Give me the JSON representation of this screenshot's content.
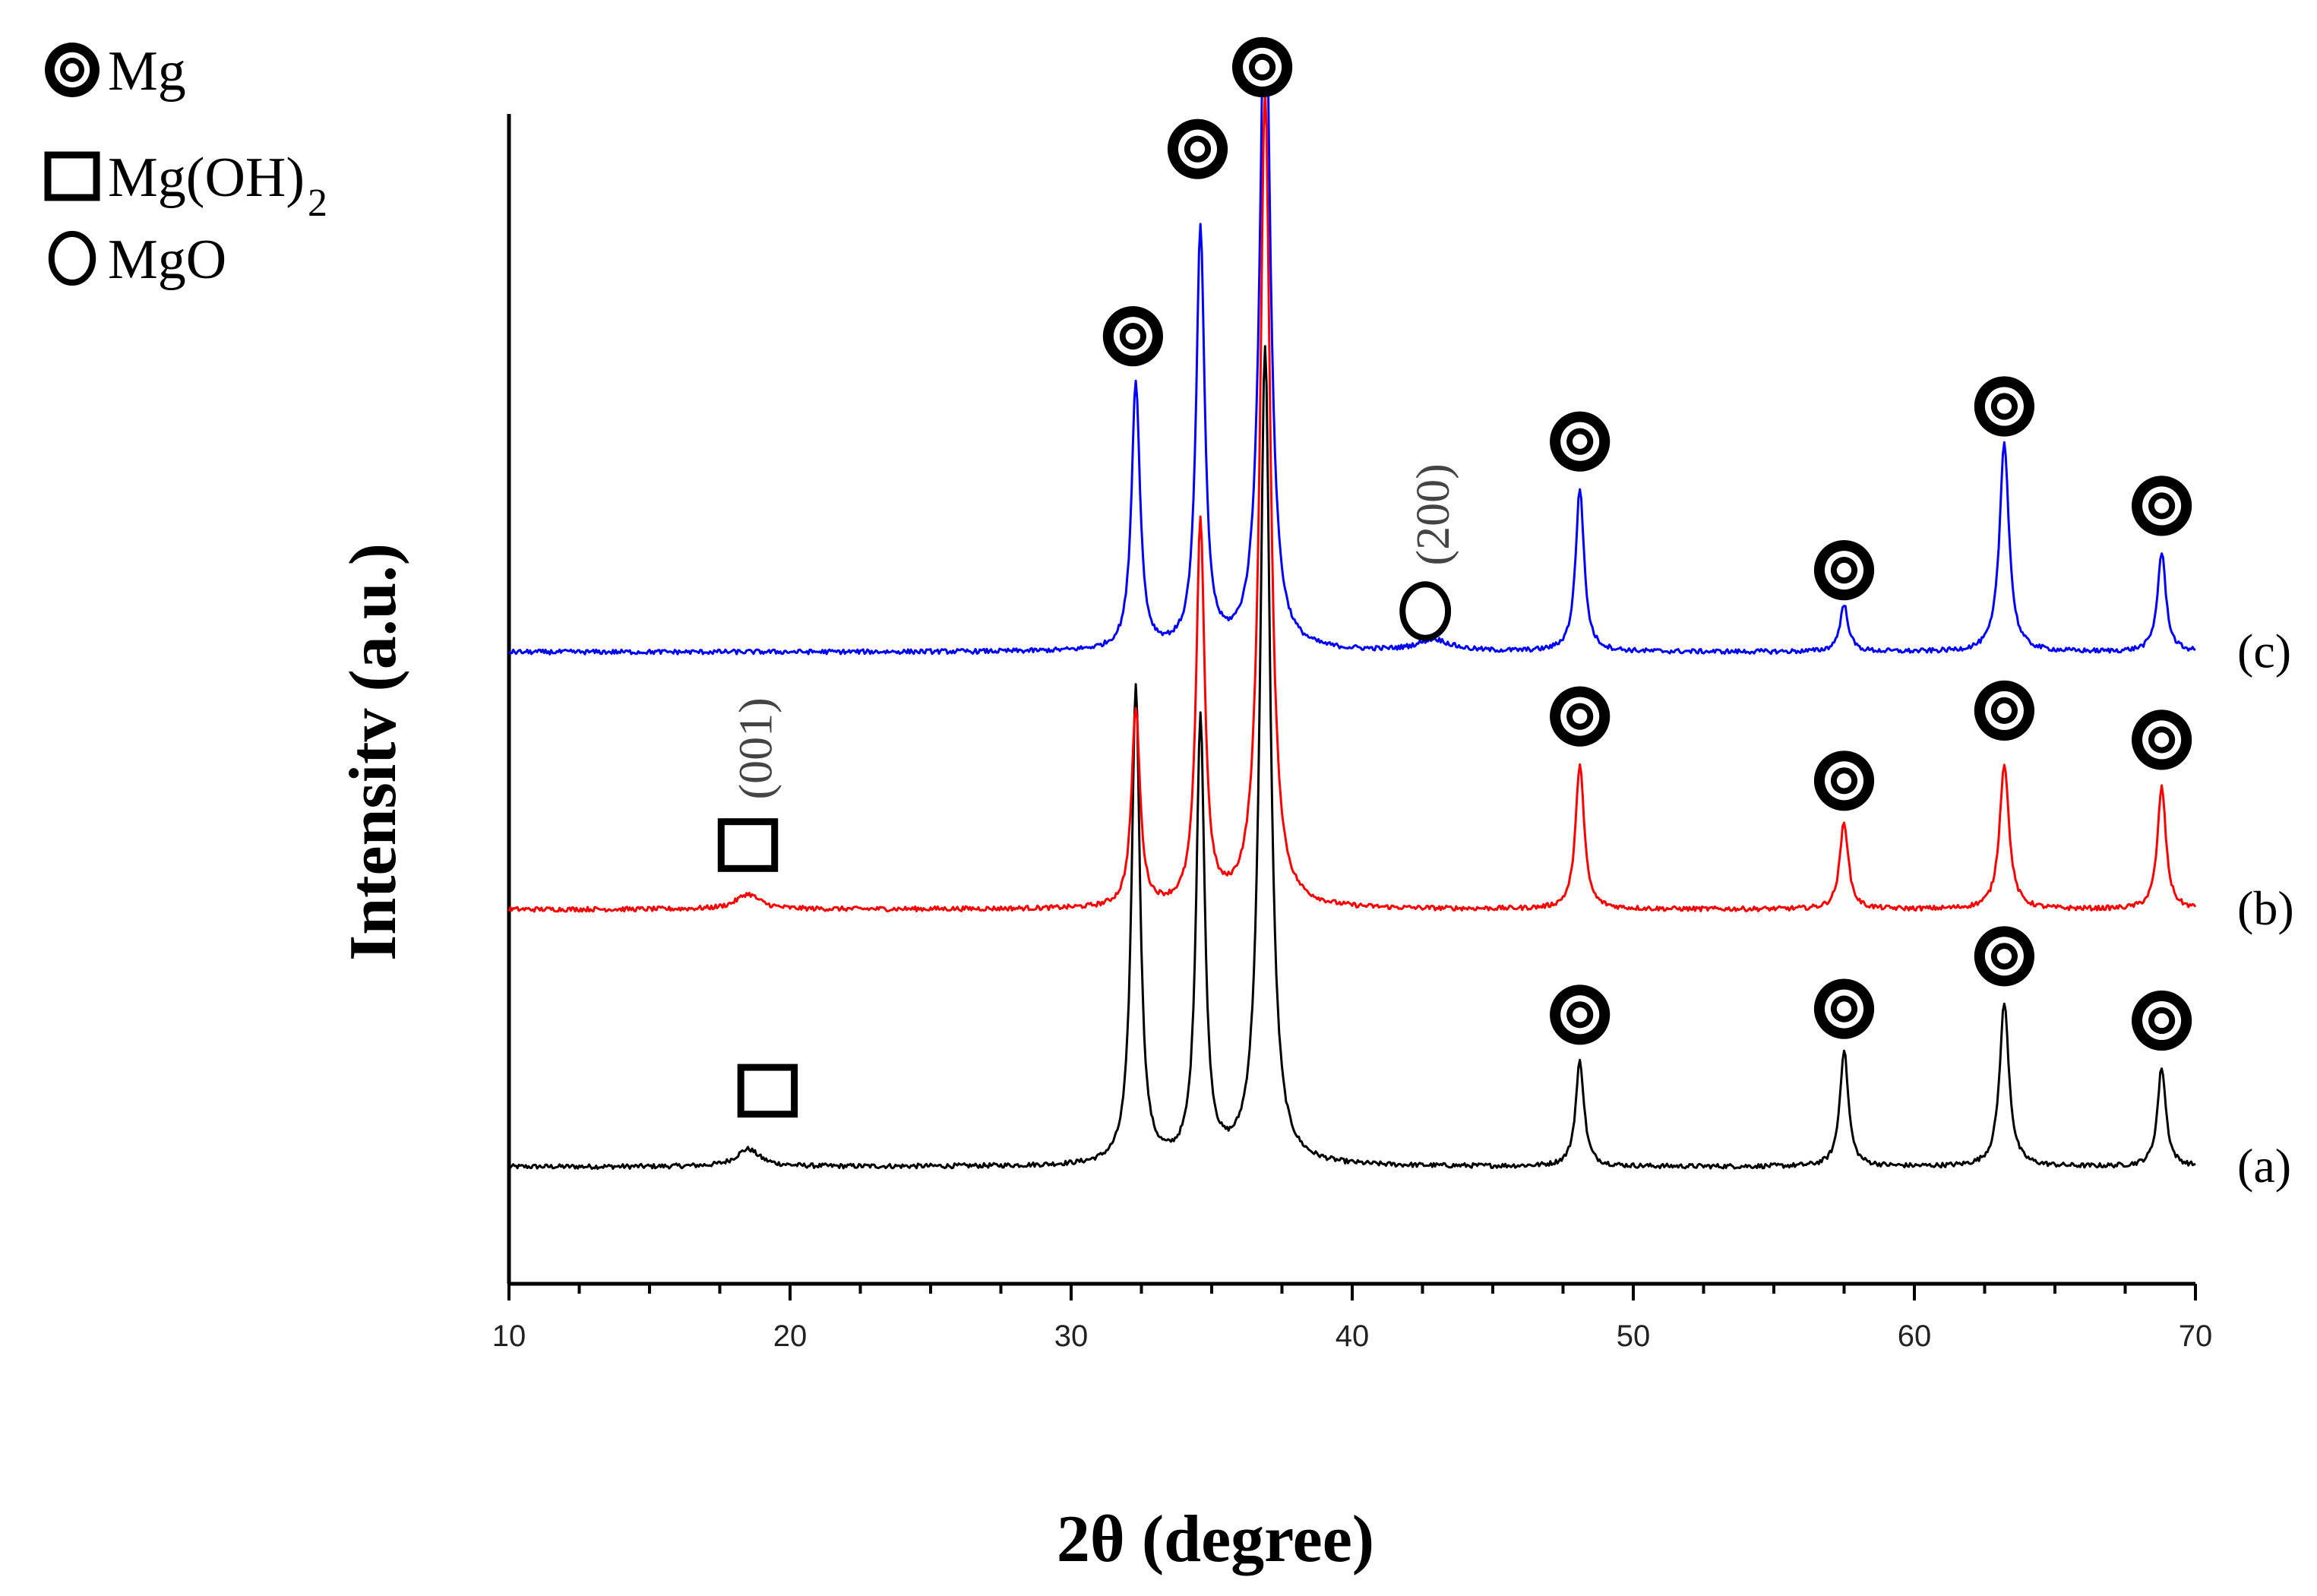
{
  "chart_data": {
    "type": "line",
    "title": "",
    "xlabel": "2θ (degree)",
    "ylabel": "Intensitv (a.u.)",
    "xlim": [
      10,
      70
    ],
    "ylim": [
      0,
      10
    ],
    "x_ticks": [
      10,
      20,
      30,
      40,
      50,
      60,
      70
    ],
    "x_tick_labels": [
      "10",
      "20",
      "30",
      "40",
      "50",
      "60",
      "70"
    ],
    "grid": false,
    "legend_position": "top-left",
    "legend": [
      {
        "marker": "double-circle",
        "label": "Mg"
      },
      {
        "marker": "square",
        "label": "Mg(OH)",
        "subscript": "2"
      },
      {
        "marker": "circle",
        "label": "MgO"
      }
    ],
    "series": [
      {
        "name": "(a)",
        "label": "(a)",
        "color": "#000000",
        "baseline": 1.0,
        "peaks": [
          {
            "x": 18.5,
            "height": 0.15,
            "width": 0.5
          },
          {
            "x": 32.3,
            "height": 4.1,
            "width": 0.18
          },
          {
            "x": 34.6,
            "height": 3.8,
            "width": 0.18
          },
          {
            "x": 36.9,
            "height": 7.0,
            "width": 0.22
          },
          {
            "x": 48.1,
            "height": 0.9,
            "width": 0.18
          },
          {
            "x": 57.5,
            "height": 1.0,
            "width": 0.18
          },
          {
            "x": 63.2,
            "height": 1.4,
            "width": 0.2
          },
          {
            "x": 68.8,
            "height": 0.85,
            "width": 0.18
          }
        ],
        "annotations": [
          {
            "x": 19.2,
            "y": 1.65,
            "marker": "square"
          },
          {
            "x": 48.1,
            "y": 2.3,
            "marker": "double-circle"
          },
          {
            "x": 57.5,
            "y": 2.35,
            "marker": "double-circle"
          },
          {
            "x": 63.2,
            "y": 2.8,
            "marker": "double-circle"
          },
          {
            "x": 68.8,
            "y": 2.25,
            "marker": "double-circle"
          }
        ]
      },
      {
        "name": "(b)",
        "label": "(b)",
        "color": "#ff0000",
        "baseline": 3.2,
        "peaks": [
          {
            "x": 18.5,
            "height": 0.13,
            "width": 0.5
          },
          {
            "x": 32.3,
            "height": 1.7,
            "width": 0.18
          },
          {
            "x": 34.6,
            "height": 3.3,
            "width": 0.18
          },
          {
            "x": 36.9,
            "height": 7.0,
            "width": 0.22
          },
          {
            "x": 48.1,
            "height": 1.25,
            "width": 0.18
          },
          {
            "x": 57.5,
            "height": 0.75,
            "width": 0.18
          },
          {
            "x": 63.2,
            "height": 1.25,
            "width": 0.2
          },
          {
            "x": 68.8,
            "height": 1.05,
            "width": 0.18
          }
        ],
        "annotations": [
          {
            "x": 18.5,
            "y": 3.75,
            "marker": "square",
            "label": "(001)"
          },
          {
            "x": 48.1,
            "y": 4.85,
            "marker": "double-circle"
          },
          {
            "x": 57.5,
            "y": 4.3,
            "marker": "double-circle"
          },
          {
            "x": 63.2,
            "y": 4.9,
            "marker": "double-circle"
          },
          {
            "x": 68.8,
            "y": 4.65,
            "marker": "double-circle"
          }
        ]
      },
      {
        "name": "(c)",
        "label": "(c)",
        "color": "#0000ff",
        "baseline": 5.4,
        "peaks": [
          {
            "x": 42.9,
            "height": 0.1,
            "width": 0.7
          },
          {
            "x": 32.3,
            "height": 2.3,
            "width": 0.18
          },
          {
            "x": 34.6,
            "height": 3.6,
            "width": 0.18
          },
          {
            "x": 36.9,
            "height": 6.0,
            "width": 0.22
          },
          {
            "x": 48.1,
            "height": 1.4,
            "width": 0.18
          },
          {
            "x": 57.5,
            "height": 0.4,
            "width": 0.18
          },
          {
            "x": 63.2,
            "height": 1.8,
            "width": 0.2
          },
          {
            "x": 68.8,
            "height": 0.85,
            "width": 0.18
          }
        ],
        "annotations": [
          {
            "x": 32.2,
            "y": 8.1,
            "marker": "double-circle"
          },
          {
            "x": 34.5,
            "y": 9.7,
            "marker": "double-circle"
          },
          {
            "x": 36.8,
            "y": 10.4,
            "marker": "double-circle"
          },
          {
            "x": 42.6,
            "y": 5.75,
            "marker": "circle",
            "label": "(200)"
          },
          {
            "x": 48.1,
            "y": 7.2,
            "marker": "double-circle"
          },
          {
            "x": 57.5,
            "y": 6.1,
            "marker": "double-circle"
          },
          {
            "x": 63.2,
            "y": 7.5,
            "marker": "double-circle"
          },
          {
            "x": 68.8,
            "y": 6.65,
            "marker": "double-circle"
          }
        ]
      }
    ]
  }
}
